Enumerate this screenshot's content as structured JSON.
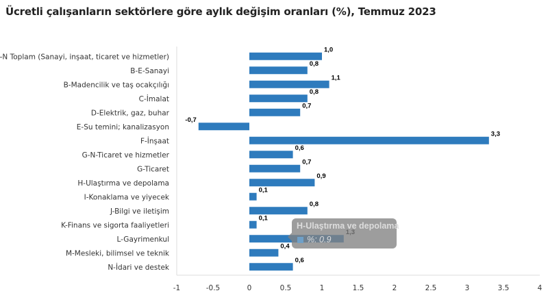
{
  "chart_data": {
    "type": "bar",
    "orientation": "horizontal",
    "title": "Ücretli çalışanların sektörlere göre aylık değişim oranları (%), Temmuz 2023",
    "categories": [
      "B-N Toplam (Sanayi, inşaat, ticaret ve hizmetler)",
      "B-E-Sanayi",
      "B-Madencilik ve taş ocakçılığı",
      "C-İmalat",
      "D-Elektrik, gaz, buhar",
      "E-Su temini; kanalizasyon",
      "F-İnşaat",
      "G-N-Ticaret ve hizmetler",
      "G-Ticaret",
      "H-Ulaştırma ve depolama",
      "I-Konaklama ve yiyecek",
      "J-Bilgi ve iletişim",
      "K-Finans ve sigorta faaliyetleri",
      "L-Gayrimenkul",
      "M-Mesleki, bilimsel ve teknik",
      "N-İdari ve destek"
    ],
    "values": [
      1.0,
      0.8,
      1.1,
      0.8,
      0.7,
      -0.7,
      3.3,
      0.6,
      0.7,
      0.9,
      0.1,
      0.8,
      0.1,
      1.3,
      0.4,
      0.6
    ],
    "data_labels": [
      "1,0",
      "0,8",
      "1,1",
      "0,8",
      "0,7",
      "-0,7",
      "3,3",
      "0,6",
      "0,7",
      "0,9",
      "0,1",
      "0,8",
      "0,1",
      "1,3",
      "0,4",
      "0,6"
    ],
    "xlim": [
      -1,
      4
    ],
    "xticks": [
      "-1",
      "-0.5",
      "0",
      "0.5",
      "1",
      "1.5",
      "2",
      "2.5",
      "3",
      "3.5",
      "4"
    ],
    "xlabel": "",
    "ylabel": "",
    "grid": false,
    "legend": "none",
    "bar_color": "#2e7bbd"
  },
  "tooltip": {
    "title": "H-Ulaştırma ve depolama",
    "value": "%: 0.9"
  }
}
